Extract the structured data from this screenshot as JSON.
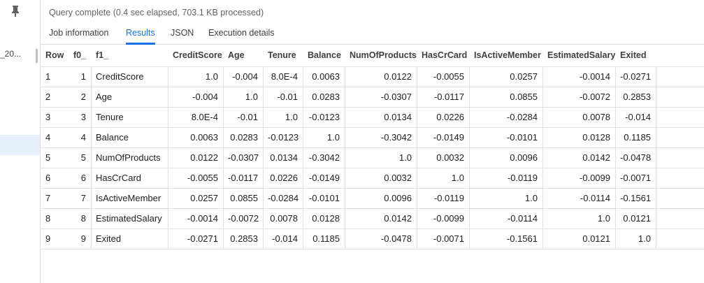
{
  "status": "Query complete (0.4 sec elapsed, 703.1 KB processed)",
  "sidebar": {
    "item": "_20..."
  },
  "tabs": [
    {
      "label": "Job information"
    },
    {
      "label": "Results",
      "active": true
    },
    {
      "label": "JSON"
    },
    {
      "label": "Execution details"
    }
  ],
  "table": {
    "columns": [
      "Row",
      "f0_",
      "f1_",
      "CreditScore",
      "Age",
      "Tenure",
      "Balance",
      "NumOfProducts",
      "HasCrCard",
      "IsActiveMember",
      "EstimatedSalary",
      "Exited"
    ],
    "rows": [
      [
        "1",
        "1",
        "CreditScore",
        "1.0",
        "-0.004",
        "8.0E-4",
        "0.0063",
        "0.0122",
        "-0.0055",
        "0.0257",
        "-0.0014",
        "-0.0271"
      ],
      [
        "2",
        "2",
        "Age",
        "-0.004",
        "1.0",
        "-0.01",
        "0.0283",
        "-0.0307",
        "-0.0117",
        "0.0855",
        "-0.0072",
        "0.2853"
      ],
      [
        "3",
        "3",
        "Tenure",
        "8.0E-4",
        "-0.01",
        "1.0",
        "-0.0123",
        "0.0134",
        "0.0226",
        "-0.0284",
        "0.0078",
        "-0.014"
      ],
      [
        "4",
        "4",
        "Balance",
        "0.0063",
        "0.0283",
        "-0.0123",
        "1.0",
        "-0.3042",
        "-0.0149",
        "-0.0101",
        "0.0128",
        "0.1185"
      ],
      [
        "5",
        "5",
        "NumOfProducts",
        "0.0122",
        "-0.0307",
        "0.0134",
        "-0.3042",
        "1.0",
        "0.0032",
        "0.0096",
        "0.0142",
        "-0.0478"
      ],
      [
        "6",
        "6",
        "HasCrCard",
        "-0.0055",
        "-0.0117",
        "0.0226",
        "-0.0149",
        "0.0032",
        "1.0",
        "-0.0119",
        "-0.0099",
        "-0.0071"
      ],
      [
        "7",
        "7",
        "IsActiveMember",
        "0.0257",
        "0.0855",
        "-0.0284",
        "-0.0101",
        "0.0096",
        "-0.0119",
        "1.0",
        "-0.0114",
        "-0.1561"
      ],
      [
        "8",
        "8",
        "EstimatedSalary",
        "-0.0014",
        "-0.0072",
        "0.0078",
        "0.0128",
        "0.0142",
        "-0.0099",
        "-0.0114",
        "1.0",
        "0.0121"
      ],
      [
        "9",
        "9",
        "Exited",
        "-0.0271",
        "0.2853",
        "-0.014",
        "0.1185",
        "-0.0478",
        "-0.0071",
        "-0.1561",
        "0.0121",
        "1.0"
      ]
    ]
  }
}
